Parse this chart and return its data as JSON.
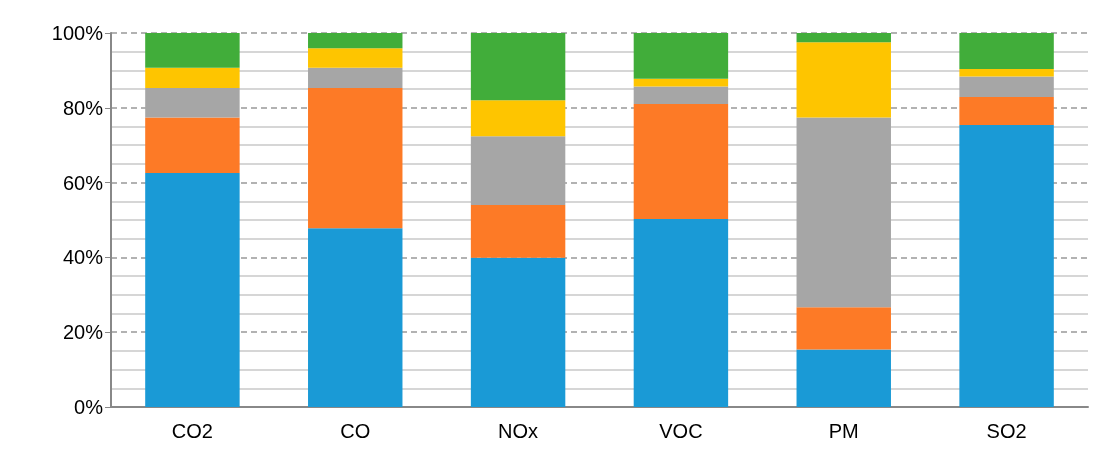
{
  "chart_data": {
    "type": "bar",
    "stacked": true,
    "categories": [
      "CO2",
      "CO",
      "NOx",
      "VOC",
      "PM",
      "SO2"
    ],
    "series": [
      {
        "color": "#1a9ad6",
        "values": [
          62.6,
          47.8,
          39.9,
          50.3,
          15.4,
          75.4
        ]
      },
      {
        "color": "#fd7a26",
        "values": [
          14.8,
          37.5,
          14.1,
          30.7,
          11.3,
          7.5
        ]
      },
      {
        "color": "#a6a6a6",
        "values": [
          7.9,
          5.4,
          18.4,
          4.7,
          50.7,
          5.5
        ]
      },
      {
        "color": "#fec500",
        "values": [
          5.4,
          5.2,
          9.6,
          2.1,
          20.1,
          2.0
        ]
      },
      {
        "color": "#41ad3a",
        "values": [
          9.3,
          4.1,
          18.0,
          12.2,
          2.5,
          9.6
        ]
      }
    ],
    "ylim": [
      0,
      100
    ],
    "yticks": [
      {
        "value": 0,
        "label": "0%"
      },
      {
        "value": 20,
        "label": "20%"
      },
      {
        "value": 40,
        "label": "40%"
      },
      {
        "value": 60,
        "label": "60%"
      },
      {
        "value": 80,
        "label": "80%"
      },
      {
        "value": 100,
        "label": "100%"
      }
    ],
    "grid": "y"
  }
}
